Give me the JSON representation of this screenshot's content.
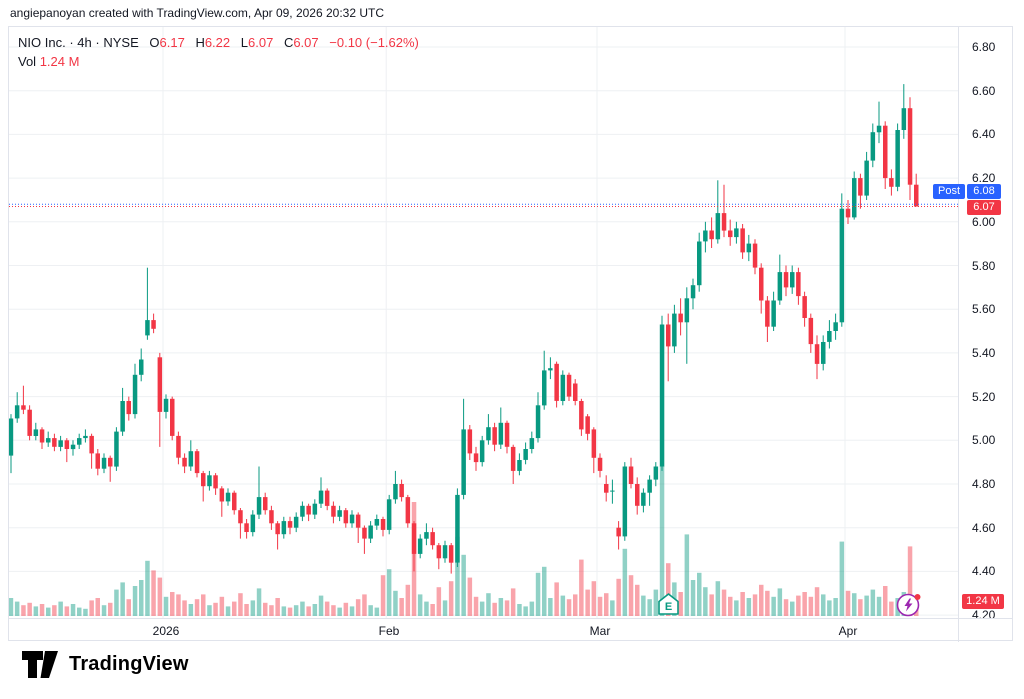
{
  "attribution": "angiepanoyan created with TradingView.com, Apr 09, 2026 20:32 UTC",
  "legend": {
    "symbol": "NIO Inc.",
    "sep1": "·",
    "interval": "4h",
    "sep2": "·",
    "exchange": "NYSE",
    "o_key": "O",
    "o_val": "6.17",
    "h_key": "H",
    "h_val": "6.22",
    "l_key": "L",
    "l_val": "6.07",
    "c_key": "C",
    "c_val": "6.07",
    "change": "−0.10 (−1.62%)",
    "vol_key": "Vol",
    "vol_val": "1.24 M"
  },
  "badges": {
    "post_label": "Post",
    "post_value": "6.08",
    "last_price": "6.07",
    "volume_value": "1.24 M"
  },
  "markers": {
    "earnings_label": "E"
  },
  "footer": {
    "logo_text": "TradingView"
  },
  "colors": {
    "up": "#089981",
    "down": "#f23645",
    "accent_blue": "#2962ff",
    "purple": "#9c27b0",
    "grid": "#eef0f3",
    "border": "#e0e3eb",
    "text": "#131722"
  },
  "chart_data": {
    "type": "candlestick",
    "title": "NIO Inc. · 4h · NYSE",
    "price_axis_ticks": [
      "6.80",
      "6.60",
      "6.40",
      "6.20",
      "6.00",
      "5.80",
      "5.60",
      "5.40",
      "5.20",
      "5.00",
      "4.80",
      "4.60",
      "4.40",
      "4.20"
    ],
    "ylim": [
      4.2,
      6.8
    ],
    "grid_step": 0.2,
    "months": [
      {
        "label": "2026",
        "index": 25
      },
      {
        "label": "Feb",
        "index": 61
      },
      {
        "label": "Mar",
        "index": 95
      },
      {
        "label": "Apr",
        "index": 135
      }
    ],
    "post_line": 6.08,
    "close_line": 6.07,
    "last_bar": {
      "open": 6.17,
      "high": 6.22,
      "low": 6.07,
      "close": 6.07,
      "change": -0.1,
      "change_pct": -1.62,
      "volume_m": 1.24
    },
    "earnings_marker_index": 106,
    "flash_marker_index": 145,
    "candles": [
      [
        4.93,
        5.12,
        4.85,
        5.1
      ],
      [
        5.1,
        5.22,
        5.08,
        5.16
      ],
      [
        5.16,
        5.25,
        5.12,
        5.14
      ],
      [
        5.14,
        5.16,
        5.0,
        5.02
      ],
      [
        5.02,
        5.08,
        5.0,
        5.05
      ],
      [
        5.05,
        5.06,
        4.96,
        4.99
      ],
      [
        4.99,
        5.04,
        4.97,
        5.01
      ],
      [
        5.01,
        5.03,
        4.95,
        4.97
      ],
      [
        4.97,
        5.02,
        4.95,
        5.0
      ],
      [
        5.0,
        5.01,
        4.9,
        4.96
      ],
      [
        4.96,
        5.0,
        4.93,
        4.98
      ],
      [
        4.98,
        5.03,
        4.96,
        5.01
      ],
      [
        5.01,
        5.05,
        4.99,
        5.02
      ],
      [
        5.02,
        5.03,
        4.87,
        4.94
      ],
      [
        4.94,
        4.96,
        4.84,
        4.87
      ],
      [
        4.87,
        4.94,
        4.85,
        4.92
      ],
      [
        4.92,
        4.93,
        4.81,
        4.88
      ],
      [
        4.88,
        5.06,
        4.86,
        5.04
      ],
      [
        5.04,
        5.24,
        5.02,
        5.18
      ],
      [
        5.18,
        5.2,
        5.09,
        5.12
      ],
      [
        5.12,
        5.35,
        5.1,
        5.3
      ],
      [
        5.3,
        5.42,
        5.27,
        5.37
      ],
      [
        5.48,
        5.79,
        5.46,
        5.55
      ],
      [
        5.55,
        5.58,
        5.49,
        5.51
      ],
      [
        5.38,
        5.4,
        4.97,
        5.13
      ],
      [
        5.13,
        5.21,
        5.1,
        5.19
      ],
      [
        5.19,
        5.2,
        5.0,
        5.02
      ],
      [
        5.02,
        5.04,
        4.89,
        4.92
      ],
      [
        4.92,
        4.94,
        4.85,
        4.88
      ],
      [
        4.88,
        5.0,
        4.86,
        4.95
      ],
      [
        4.95,
        4.96,
        4.83,
        4.85
      ],
      [
        4.85,
        4.86,
        4.72,
        4.79
      ],
      [
        4.79,
        4.86,
        4.77,
        4.84
      ],
      [
        4.84,
        4.85,
        4.75,
        4.78
      ],
      [
        4.78,
        4.79,
        4.65,
        4.72
      ],
      [
        4.72,
        4.78,
        4.7,
        4.76
      ],
      [
        4.76,
        4.77,
        4.66,
        4.68
      ],
      [
        4.68,
        4.69,
        4.55,
        4.62
      ],
      [
        4.62,
        4.64,
        4.55,
        4.58
      ],
      [
        4.58,
        4.68,
        4.56,
        4.66
      ],
      [
        4.66,
        4.88,
        4.64,
        4.74
      ],
      [
        4.74,
        4.76,
        4.66,
        4.68
      ],
      [
        4.68,
        4.7,
        4.59,
        4.62
      ],
      [
        4.62,
        4.63,
        4.5,
        4.57
      ],
      [
        4.57,
        4.65,
        4.55,
        4.63
      ],
      [
        4.63,
        4.65,
        4.57,
        4.6
      ],
      [
        4.6,
        4.67,
        4.58,
        4.65
      ],
      [
        4.65,
        4.72,
        4.63,
        4.7
      ],
      [
        4.7,
        4.71,
        4.63,
        4.66
      ],
      [
        4.66,
        4.73,
        4.64,
        4.71
      ],
      [
        4.71,
        4.83,
        4.69,
        4.77
      ],
      [
        4.77,
        4.78,
        4.68,
        4.7
      ],
      [
        4.7,
        4.72,
        4.62,
        4.65
      ],
      [
        4.65,
        4.7,
        4.63,
        4.68
      ],
      [
        4.68,
        4.69,
        4.6,
        4.62
      ],
      [
        4.62,
        4.68,
        4.6,
        4.66
      ],
      [
        4.66,
        4.67,
        4.53,
        4.6
      ],
      [
        4.6,
        4.61,
        4.48,
        4.55
      ],
      [
        4.55,
        4.63,
        4.53,
        4.61
      ],
      [
        4.61,
        4.66,
        4.59,
        4.64
      ],
      [
        4.64,
        4.65,
        4.56,
        4.59
      ],
      [
        4.59,
        4.75,
        4.57,
        4.73
      ],
      [
        4.73,
        4.86,
        4.71,
        4.8
      ],
      [
        4.8,
        4.82,
        4.72,
        4.74
      ],
      [
        4.74,
        4.75,
        4.6,
        4.62
      ],
      [
        4.62,
        4.63,
        4.4,
        4.48
      ],
      [
        4.48,
        4.57,
        4.46,
        4.55
      ],
      [
        4.55,
        4.62,
        4.52,
        4.58
      ],
      [
        4.58,
        4.6,
        4.5,
        4.52
      ],
      [
        4.52,
        4.53,
        4.41,
        4.46
      ],
      [
        4.46,
        4.54,
        4.44,
        4.52
      ],
      [
        4.52,
        4.53,
        4.39,
        4.44
      ],
      [
        4.44,
        4.78,
        4.42,
        4.75
      ],
      [
        4.75,
        5.19,
        4.73,
        5.05
      ],
      [
        5.05,
        5.07,
        4.91,
        4.94
      ],
      [
        4.94,
        4.97,
        4.86,
        4.9
      ],
      [
        4.9,
        5.02,
        4.88,
        5.0
      ],
      [
        5.0,
        5.12,
        4.98,
        5.06
      ],
      [
        5.06,
        5.08,
        4.95,
        4.98
      ],
      [
        4.98,
        5.15,
        4.96,
        5.08
      ],
      [
        5.08,
        5.09,
        4.94,
        4.97
      ],
      [
        4.97,
        4.98,
        4.8,
        4.86
      ],
      [
        4.86,
        4.94,
        4.84,
        4.91
      ],
      [
        4.91,
        4.99,
        4.89,
        4.96
      ],
      [
        4.96,
        5.04,
        4.94,
        5.01
      ],
      [
        5.01,
        5.22,
        4.99,
        5.16
      ],
      [
        5.16,
        5.41,
        5.14,
        5.32
      ],
      [
        5.32,
        5.38,
        5.28,
        5.33
      ],
      [
        5.35,
        5.36,
        5.15,
        5.18
      ],
      [
        5.18,
        5.32,
        5.16,
        5.3
      ],
      [
        5.3,
        5.31,
        5.18,
        5.2
      ],
      [
        5.26,
        5.28,
        5.16,
        5.18
      ],
      [
        5.18,
        5.19,
        5.02,
        5.05
      ],
      [
        5.11,
        5.12,
        5.0,
        5.03
      ],
      [
        5.05,
        5.06,
        4.85,
        4.92
      ],
      [
        4.92,
        4.94,
        4.83,
        4.86
      ],
      [
        4.8,
        4.84,
        4.72,
        4.76
      ],
      [
        4.77,
        4.82,
        4.71,
        4.77
      ],
      [
        4.6,
        4.63,
        4.5,
        4.56
      ],
      [
        4.56,
        4.9,
        4.54,
        4.88
      ],
      [
        4.88,
        4.92,
        4.78,
        4.8
      ],
      [
        4.8,
        4.83,
        4.66,
        4.7
      ],
      [
        4.7,
        4.78,
        4.67,
        4.76
      ],
      [
        4.76,
        4.84,
        4.7,
        4.82
      ],
      [
        4.82,
        4.9,
        4.79,
        4.88
      ],
      [
        4.88,
        5.57,
        4.86,
        5.53
      ],
      [
        5.53,
        5.58,
        5.27,
        5.43
      ],
      [
        5.43,
        5.62,
        5.4,
        5.58
      ],
      [
        5.58,
        5.65,
        5.48,
        5.54
      ],
      [
        5.54,
        5.7,
        5.35,
        5.65
      ],
      [
        5.65,
        5.74,
        5.6,
        5.71
      ],
      [
        5.71,
        5.95,
        5.68,
        5.91
      ],
      [
        5.91,
        6.0,
        5.86,
        5.96
      ],
      [
        5.96,
        6.02,
        5.88,
        5.92
      ],
      [
        5.92,
        6.19,
        5.9,
        6.04
      ],
      [
        6.04,
        6.17,
        5.93,
        5.96
      ],
      [
        5.96,
        6.01,
        5.89,
        5.93
      ],
      [
        5.93,
        6.0,
        5.9,
        5.97
      ],
      [
        5.97,
        5.99,
        5.83,
        5.86
      ],
      [
        5.86,
        5.94,
        5.82,
        5.9
      ],
      [
        5.9,
        5.92,
        5.76,
        5.79
      ],
      [
        5.79,
        5.81,
        5.58,
        5.64
      ],
      [
        5.64,
        5.66,
        5.45,
        5.52
      ],
      [
        5.52,
        5.68,
        5.5,
        5.64
      ],
      [
        5.64,
        5.85,
        5.62,
        5.77
      ],
      [
        5.77,
        5.8,
        5.66,
        5.7
      ],
      [
        5.7,
        5.8,
        5.67,
        5.77
      ],
      [
        5.77,
        5.79,
        5.62,
        5.66
      ],
      [
        5.66,
        5.68,
        5.52,
        5.56
      ],
      [
        5.56,
        5.58,
        5.4,
        5.44
      ],
      [
        5.44,
        5.48,
        5.28,
        5.35
      ],
      [
        5.35,
        5.48,
        5.32,
        5.45
      ],
      [
        5.45,
        5.55,
        5.42,
        5.5
      ],
      [
        5.5,
        5.58,
        5.46,
        5.54
      ],
      [
        5.54,
        6.13,
        5.52,
        6.06
      ],
      [
        6.06,
        6.1,
        5.99,
        6.02
      ],
      [
        6.02,
        6.23,
        6.01,
        6.2
      ],
      [
        6.2,
        6.22,
        6.06,
        6.12
      ],
      [
        6.12,
        6.32,
        6.1,
        6.28
      ],
      [
        6.28,
        6.45,
        6.25,
        6.41
      ],
      [
        6.41,
        6.55,
        6.36,
        6.44
      ],
      [
        6.44,
        6.46,
        6.15,
        6.2
      ],
      [
        6.2,
        6.24,
        6.12,
        6.16
      ],
      [
        6.16,
        6.45,
        6.14,
        6.42
      ],
      [
        6.42,
        6.63,
        6.38,
        6.52
      ],
      [
        6.52,
        6.57,
        6.1,
        6.17
      ],
      [
        6.17,
        6.22,
        6.07,
        6.07
      ]
    ],
    "volumes_m": [
      1.5,
      1.2,
      0.9,
      1.1,
      0.8,
      1.0,
      0.7,
      0.9,
      1.2,
      0.8,
      1.0,
      0.7,
      0.6,
      1.3,
      1.5,
      0.9,
      1.1,
      2.2,
      2.8,
      1.4,
      2.5,
      3.0,
      4.6,
      3.8,
      3.2,
      1.6,
      2.0,
      1.8,
      1.3,
      1.0,
      1.4,
      1.8,
      0.9,
      1.1,
      1.6,
      0.8,
      1.2,
      1.9,
      1.0,
      1.3,
      2.3,
      1.1,
      0.9,
      1.5,
      0.8,
      0.7,
      0.9,
      1.2,
      0.8,
      1.0,
      1.7,
      1.2,
      0.9,
      0.7,
      1.1,
      0.8,
      1.4,
      1.8,
      0.9,
      0.7,
      3.4,
      3.9,
      2.1,
      1.5,
      2.6,
      9.5,
      1.8,
      1.2,
      1.0,
      2.4,
      1.3,
      2.9,
      6.6,
      5.1,
      3.2,
      1.6,
      1.2,
      1.9,
      1.1,
      1.5,
      1.3,
      2.3,
      1.0,
      0.8,
      1.2,
      3.6,
      4.1,
      1.5,
      2.8,
      1.7,
      1.4,
      1.8,
      4.7,
      2.2,
      2.9,
      1.6,
      1.9,
      1.3,
      3.1,
      5.6,
      3.4,
      2.6,
      1.7,
      1.4,
      2.2,
      12.5,
      4.4,
      2.8,
      2.0,
      6.8,
      3.0,
      3.6,
      2.4,
      1.8,
      2.9,
      2.2,
      1.6,
      1.3,
      2.0,
      1.5,
      1.8,
      2.6,
      2.1,
      1.6,
      2.3,
      1.4,
      1.2,
      1.7,
      2.0,
      1.6,
      2.4,
      1.8,
      1.3,
      1.5,
      6.2,
      2.1,
      1.9,
      1.4,
      1.7,
      2.2,
      1.6,
      2.5,
      1.2,
      1.5,
      2.0,
      5.8,
      1.24
    ]
  }
}
